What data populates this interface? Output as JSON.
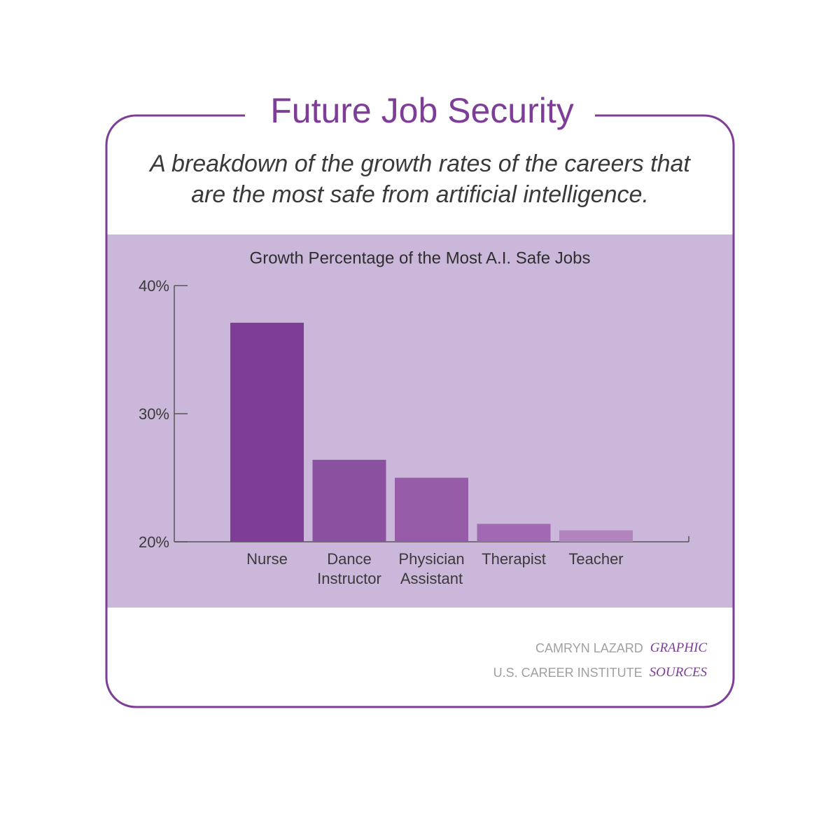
{
  "chart_data": {
    "type": "bar",
    "title": "Future Job Security",
    "subtitle": "A breakdown of the growth rates of the careers that are the most safe from artificial intelligence.",
    "chart_title": "Growth Percentage of the Most A.I. Safe Jobs",
    "categories": [
      "Nurse",
      "Dance Instructor",
      "Physician Assistant",
      "Therapist",
      "Teacher"
    ],
    "values": [
      37.1,
      26.4,
      25.0,
      21.4,
      20.9
    ],
    "colors": [
      "#7e3d96",
      "#8a51a0",
      "#965ca8",
      "#a169b1",
      "#b184be"
    ],
    "ylim": [
      20,
      40
    ],
    "yticks": [
      {
        "value": 20,
        "label": "20%"
      },
      {
        "value": 30,
        "label": "30%"
      },
      {
        "value": 40,
        "label": "40%"
      }
    ],
    "credits": [
      {
        "name": "CAMRYN LAZARD",
        "role": "GRAPHIC"
      },
      {
        "name": "U.S. CAREER INSTITUTE",
        "role": "SOURCES"
      }
    ]
  }
}
